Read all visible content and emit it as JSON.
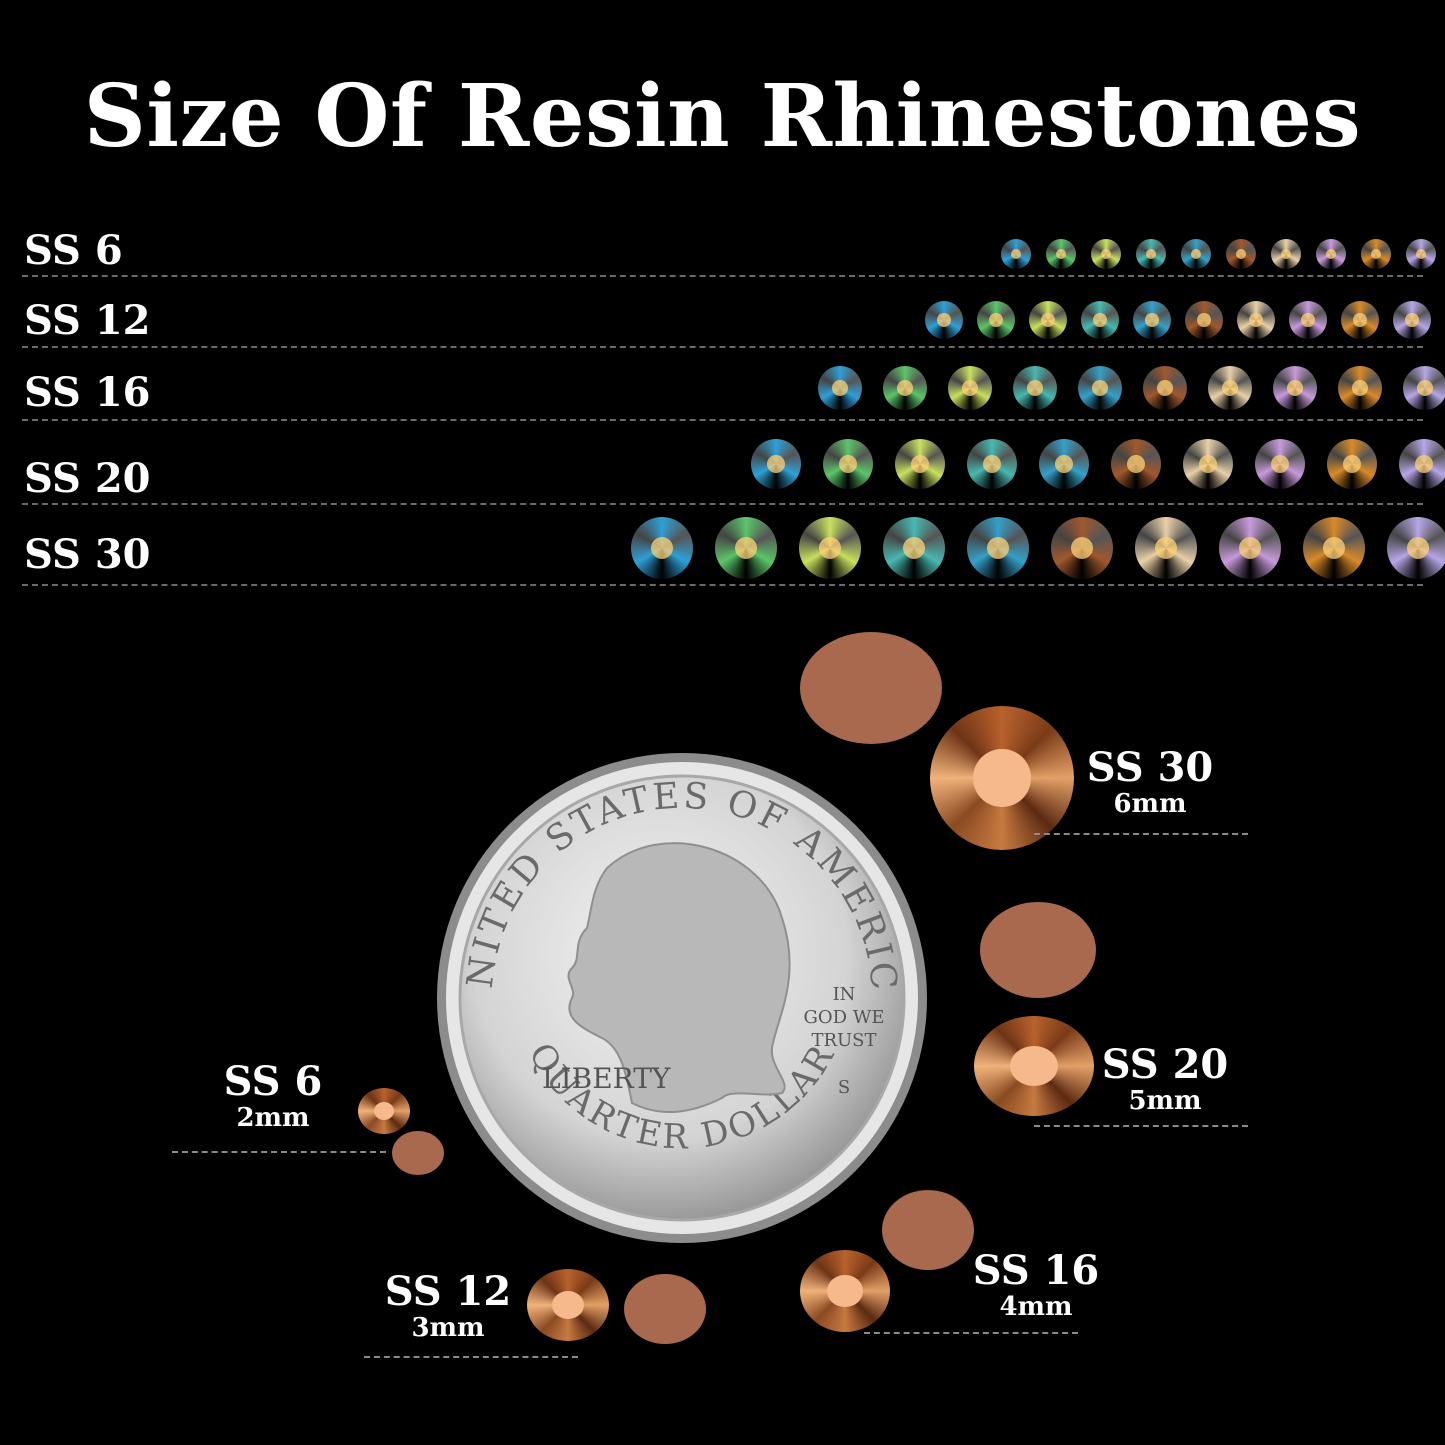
{
  "title": "Size Of Resin Rhinestones",
  "rows": [
    {
      "label": "SS 6"
    },
    {
      "label": "SS 12"
    },
    {
      "label": "SS 16"
    },
    {
      "label": "SS 20"
    },
    {
      "label": "SS 30"
    }
  ],
  "stone_colors": [
    "#2f9fd6",
    "#5cc46a",
    "#c8e060",
    "#49b8b0",
    "#35a0c8",
    "#a0582e",
    "#e8d0a8",
    "#c79adb",
    "#d88a2a",
    "#b6a6e6"
  ],
  "comparison": {
    "ss30": {
      "name": "SS 30",
      "size": "6mm"
    },
    "ss20": {
      "name": "SS 20",
      "size": "5mm"
    },
    "ss16": {
      "name": "SS 16",
      "size": "4mm"
    },
    "ss12": {
      "name": "SS 12",
      "size": "3mm"
    },
    "ss6": {
      "name": "SS 6",
      "size": "2mm"
    }
  },
  "coin": {
    "top_text": "UNITED STATES OF AMERICA",
    "bottom_text": "QUARTER DOLLAR",
    "liberty": "LIBERTY",
    "motto_1": "IN",
    "motto_2": "GOD WE",
    "motto_3": "TRUST",
    "mint": "S"
  }
}
